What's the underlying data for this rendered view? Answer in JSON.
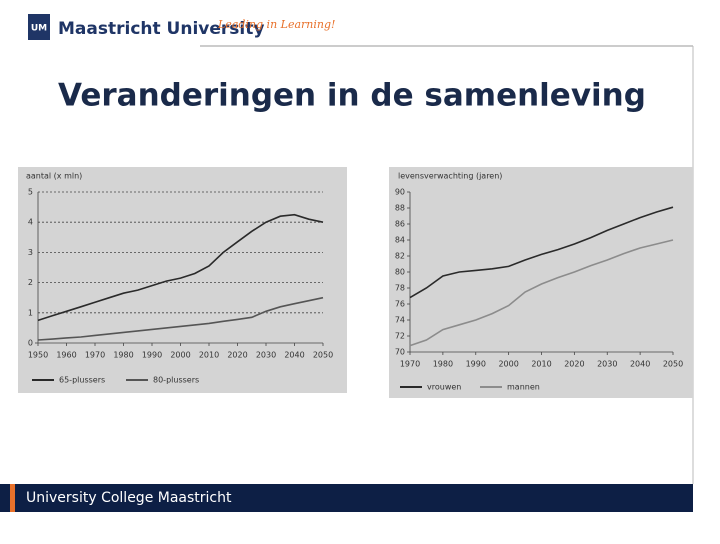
{
  "slide": {
    "logo_mark": "UM",
    "university": "Maastricht University",
    "tagline": "Leading in Learning!",
    "title": "Veranderingen in de samenleving",
    "footer": "University College Maastricht"
  },
  "chart_data": [
    {
      "type": "line",
      "y_label": "aantal (x mln)",
      "x": [
        1950,
        1955,
        1960,
        1965,
        1970,
        1975,
        1980,
        1985,
        1990,
        1995,
        2000,
        2005,
        2010,
        2015,
        2020,
        2025,
        2030,
        2035,
        2040,
        2045,
        2050
      ],
      "xlim": [
        1950,
        2050
      ],
      "xticks": [
        1950,
        1960,
        1970,
        1980,
        1990,
        2000,
        2010,
        2020,
        2030,
        2040,
        2050
      ],
      "ylim": [
        0,
        5
      ],
      "yticks": [
        0,
        1,
        2,
        3,
        4,
        5
      ],
      "grid": true,
      "series": [
        {
          "name": "65-plussers",
          "color": "#2a2a2a",
          "values": [
            0.75,
            0.9,
            1.05,
            1.2,
            1.35,
            1.5,
            1.65,
            1.75,
            1.9,
            2.05,
            2.15,
            2.3,
            2.55,
            3.0,
            3.35,
            3.7,
            4.0,
            4.2,
            4.25,
            4.1,
            4.0
          ]
        },
        {
          "name": "80-plussers",
          "color": "#555555",
          "values": [
            0.1,
            0.13,
            0.17,
            0.2,
            0.25,
            0.3,
            0.35,
            0.4,
            0.45,
            0.5,
            0.55,
            0.6,
            0.65,
            0.72,
            0.78,
            0.85,
            1.05,
            1.2,
            1.3,
            1.4,
            1.5
          ]
        }
      ]
    },
    {
      "type": "line",
      "y_label": "levensverwachting (jaren)",
      "x": [
        1970,
        1975,
        1980,
        1985,
        1990,
        1995,
        2000,
        2005,
        2010,
        2015,
        2020,
        2025,
        2030,
        2035,
        2040,
        2045,
        2050
      ],
      "xlim": [
        1970,
        2050
      ],
      "xticks": [
        1970,
        1980,
        1990,
        2000,
        2010,
        2020,
        2030,
        2040,
        2050
      ],
      "ylim": [
        70,
        90
      ],
      "yticks": [
        70,
        72,
        74,
        76,
        78,
        80,
        82,
        84,
        86,
        88,
        90
      ],
      "grid": false,
      "series": [
        {
          "name": "vrouwen",
          "color": "#2a2a2a",
          "values": [
            76.8,
            78,
            79.5,
            80,
            80.2,
            80.4,
            80.7,
            81.5,
            82.2,
            82.8,
            83.5,
            84.3,
            85.2,
            86,
            86.8,
            87.5,
            88.1
          ]
        },
        {
          "name": "mannen",
          "color": "#8c8c8c",
          "values": [
            70.8,
            71.5,
            72.8,
            73.4,
            74,
            74.8,
            75.8,
            77.5,
            78.5,
            79.3,
            80,
            80.8,
            81.5,
            82.3,
            83,
            83.5,
            84
          ]
        }
      ]
    }
  ]
}
